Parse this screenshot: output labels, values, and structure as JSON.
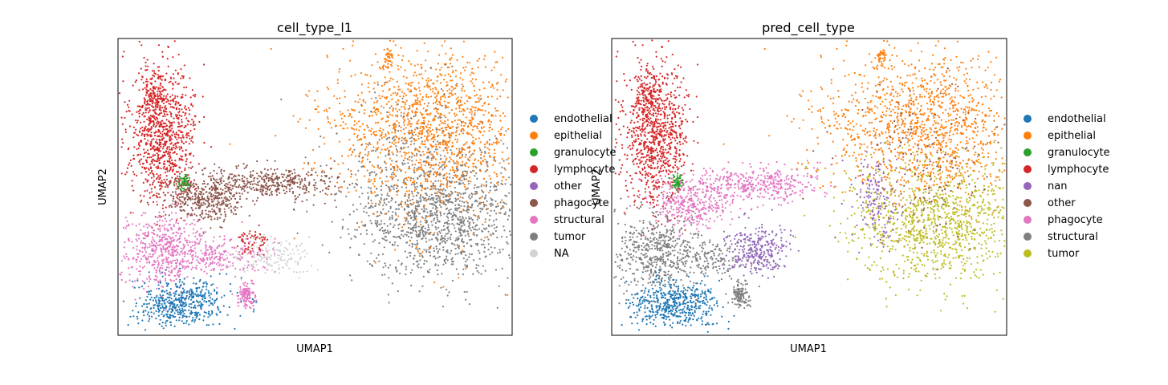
{
  "chart_data": [
    {
      "type": "scatter",
      "title": "cell_type_l1",
      "xlabel": "UMAP1",
      "ylabel": "UMAP2",
      "xticks": "none",
      "yticks": "none",
      "grid": false,
      "legend_position": "right",
      "series": [
        {
          "name": "endothelial",
          "color": "#1f77b4"
        },
        {
          "name": "epithelial",
          "color": "#ff7f0e"
        },
        {
          "name": "granulocyte",
          "color": "#2ca02c"
        },
        {
          "name": "lymphocyte",
          "color": "#d62728"
        },
        {
          "name": "other",
          "color": "#9467bd"
        },
        {
          "name": "phagocyte",
          "color": "#8c564b"
        },
        {
          "name": "structural",
          "color": "#e377c2"
        },
        {
          "name": "tumor",
          "color": "#7f7f7f"
        },
        {
          "name": "NA",
          "color": "#d3d3d3"
        }
      ]
    },
    {
      "type": "scatter",
      "title": "pred_cell_type",
      "xlabel": "UMAP1",
      "ylabel": "UMAP2",
      "xticks": "none",
      "yticks": "none",
      "grid": false,
      "legend_position": "right",
      "series": [
        {
          "name": "endothelial",
          "color": "#1f77b4"
        },
        {
          "name": "epithelial",
          "color": "#ff7f0e"
        },
        {
          "name": "granulocyte",
          "color": "#2ca02c"
        },
        {
          "name": "lymphocyte",
          "color": "#d62728"
        },
        {
          "name": "nan",
          "color": "#9467bd"
        },
        {
          "name": "other",
          "color": "#8c564b"
        },
        {
          "name": "phagocyte",
          "color": "#e377c2"
        },
        {
          "name": "structural",
          "color": "#7f7f7f"
        },
        {
          "name": "tumor",
          "color": "#bcbd22"
        }
      ]
    }
  ]
}
